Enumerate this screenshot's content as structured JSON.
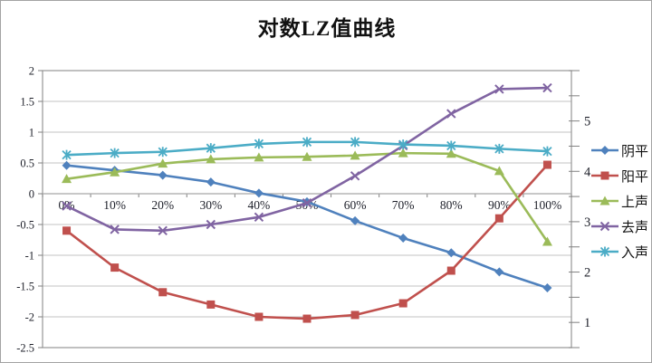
{
  "chart_data": {
    "type": "line",
    "title": "对数LZ值曲线",
    "categories": [
      "0%",
      "10%",
      "20%",
      "30%",
      "40%",
      "50%",
      "60%",
      "70%",
      "80%",
      "90%",
      "100%"
    ],
    "series": [
      {
        "id": "yinping",
        "name": "阴平",
        "color": "#4F81BD",
        "marker": "diamond",
        "values": [
          0.46,
          0.38,
          0.3,
          0.19,
          0.01,
          -0.13,
          -0.44,
          -0.72,
          -0.96,
          -1.27,
          -1.53
        ]
      },
      {
        "id": "yangping",
        "name": "阳平",
        "color": "#C0504D",
        "marker": "square",
        "values": [
          -0.6,
          -1.2,
          -1.6,
          -1.8,
          -2.0,
          -2.03,
          -1.97,
          -1.78,
          -1.25,
          -0.4,
          0.47
        ]
      },
      {
        "id": "shangsheng",
        "name": "上声",
        "color": "#9BBB59",
        "marker": "triangle",
        "values": [
          0.24,
          0.35,
          0.49,
          0.56,
          0.59,
          0.6,
          0.62,
          0.66,
          0.65,
          0.37,
          -0.78
        ]
      },
      {
        "id": "qusheng",
        "name": "去声",
        "color": "#8064A2",
        "marker": "x",
        "values": [
          -0.2,
          -0.58,
          -0.6,
          -0.5,
          -0.38,
          -0.15,
          0.29,
          0.78,
          1.3,
          1.7,
          1.72
        ]
      },
      {
        "id": "rusheng",
        "name": "入声",
        "color": "#4BACC6",
        "marker": "asterisk",
        "values": [
          0.63,
          0.66,
          0.68,
          0.74,
          0.81,
          0.84,
          0.84,
          0.8,
          0.78,
          0.73,
          0.69
        ]
      }
    ],
    "left_axis": {
      "min": -2.5,
      "max": 2,
      "step": 0.5,
      "tick_labels": [
        "2",
        "1.5",
        "1",
        "0.5",
        "0",
        "-0.5",
        "-1",
        "-1.5",
        "-2",
        "-2.5"
      ]
    },
    "right_axis": {
      "min": 0.5,
      "max": 6,
      "tick_step": 0.5,
      "tick_labels": [
        "5",
        "4",
        "3",
        "2",
        "1"
      ],
      "label_values": [
        5,
        4,
        3,
        2,
        1
      ]
    },
    "x_axis_crosses_at": 0,
    "grid": true,
    "legend_position": "right",
    "colors": {
      "gridline": "#c3c3c3",
      "plot_border": "#969696",
      "axis_tick": "#808080",
      "text": "#1d1f29"
    }
  }
}
